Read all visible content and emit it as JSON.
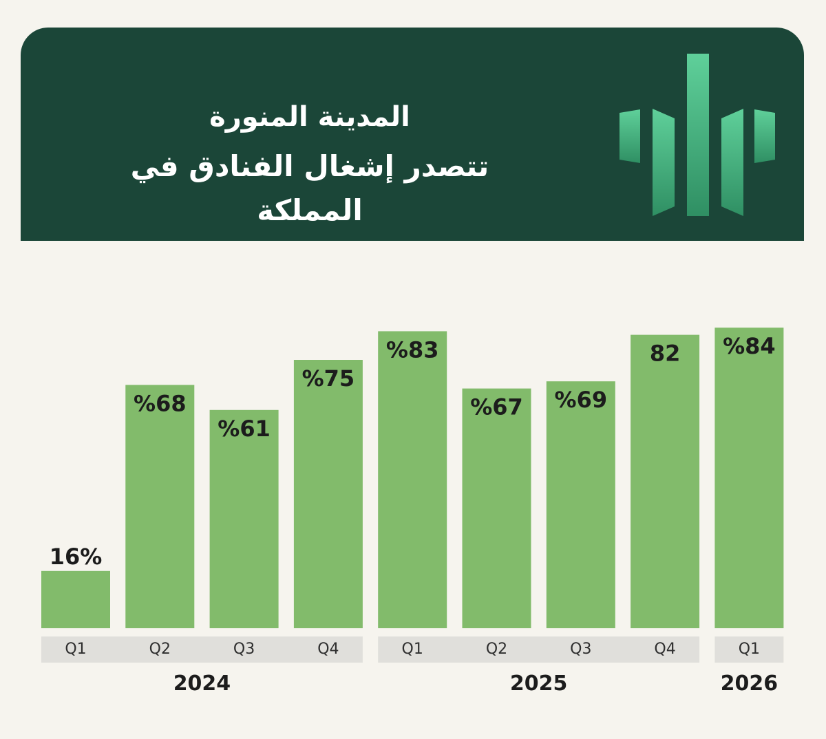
{
  "header": {
    "title_line_1": "المدينة المنورة",
    "title_line_2": "تتصدر إشغال الفنادق في المملكة",
    "logo_icon": "equalizer-bars-logo-icon"
  },
  "colors": {
    "header_bg": "#1b4638",
    "bar": "#82bb6b",
    "quarter_label_bg": "#e0dfdb",
    "page_bg": "#f6f4ee"
  },
  "chart_data": {
    "type": "bar",
    "title": "",
    "xlabel": "",
    "ylabel": "",
    "ylim": [
      0,
      100
    ],
    "grid": false,
    "legend": "none",
    "categories": [
      "Q1",
      "Q2",
      "Q3",
      "Q4",
      "Q1",
      "Q2",
      "Q3",
      "Q4",
      "Q1"
    ],
    "years": [
      "2024",
      "2024",
      "2024",
      "2024",
      "2025",
      "2025",
      "2025",
      "2025",
      "2026"
    ],
    "year_groups": [
      {
        "label": "2024",
        "count": 4
      },
      {
        "label": "2025",
        "count": 4
      },
      {
        "label": "2026",
        "count": 1
      }
    ],
    "values": [
      16,
      68,
      61,
      75,
      83,
      67,
      69,
      82,
      84
    ],
    "value_labels": [
      "16%",
      "%68",
      "%61",
      "%75",
      "%83",
      "%67",
      "%69",
      "82",
      "%84"
    ]
  }
}
